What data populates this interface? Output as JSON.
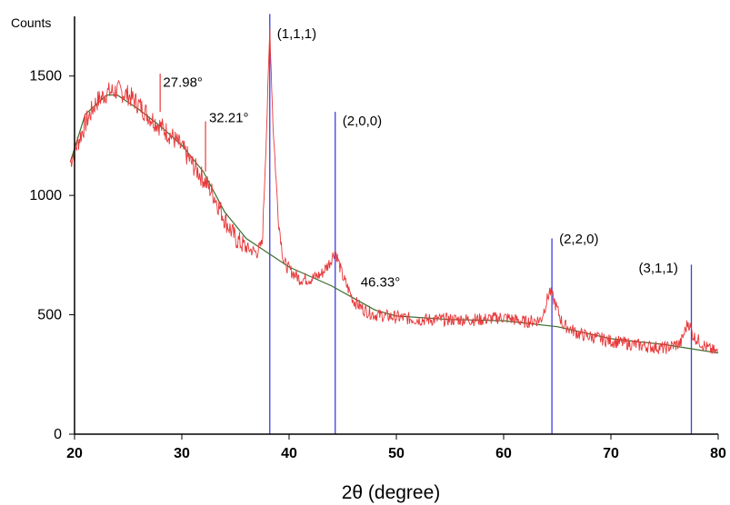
{
  "chart_data": {
    "type": "line",
    "title": "",
    "xlabel": "2θ (degree)",
    "ylabel": "Counts",
    "xlim": [
      20,
      80
    ],
    "ylim": [
      0,
      1750
    ],
    "xticks": [
      20,
      30,
      40,
      50,
      60,
      70,
      80
    ],
    "yticks": [
      0,
      500,
      1000,
      1500
    ],
    "grid": false,
    "legend": "none",
    "colors": {
      "pattern": "#e8383a",
      "background": "#3b6e2e",
      "reference": "#3f3fe0",
      "axis": "#000000"
    },
    "series": [
      {
        "kind": "measured-pattern",
        "x": [
          19.6,
          21,
          22,
          23,
          24,
          25,
          26,
          27,
          28,
          29,
          30,
          31,
          32,
          33,
          34,
          35,
          36,
          37,
          37.5,
          38,
          38.2,
          38.5,
          39,
          39.5,
          40,
          41,
          42,
          43,
          43.8,
          44.3,
          45,
          46,
          47,
          48,
          50,
          52,
          55,
          58,
          60,
          62,
          63.5,
          64.3,
          64.7,
          65.5,
          67,
          70,
          73,
          75,
          76.5,
          77.2,
          77.7,
          79,
          80
        ],
        "y": [
          1140,
          1300,
          1390,
          1430,
          1440,
          1420,
          1380,
          1330,
          1290,
          1250,
          1200,
          1130,
          1070,
          1000,
          900,
          820,
          780,
          760,
          800,
          1400,
          1700,
          1300,
          900,
          720,
          690,
          650,
          650,
          670,
          720,
          770,
          660,
          560,
          520,
          500,
          490,
          480,
          480,
          480,
          490,
          470,
          480,
          600,
          560,
          460,
          420,
          390,
          370,
          360,
          380,
          470,
          410,
          360,
          340
        ]
      },
      {
        "kind": "background-fit",
        "x": [
          19.6,
          21,
          23,
          24,
          26,
          28,
          30,
          32,
          34,
          36,
          38,
          40,
          42,
          44,
          46,
          48,
          50,
          55,
          60,
          65,
          70,
          75,
          80
        ],
        "y": [
          1140,
          1340,
          1420,
          1420,
          1360,
          1290,
          1210,
          1100,
          930,
          820,
          760,
          700,
          660,
          620,
          570,
          520,
          495,
          480,
          475,
          450,
          400,
          375,
          340
        ]
      }
    ],
    "reference_lines": [
      {
        "label": "(1,1,1)",
        "x": 38.2,
        "height": 1760
      },
      {
        "label": "(2,0,0)",
        "x": 44.3,
        "height": 1350
      },
      {
        "label": "(2,2,0)",
        "x": 64.5,
        "height": 820
      },
      {
        "label": "(3,1,1)",
        "x": 77.5,
        "height": 710
      }
    ],
    "annotations": [
      {
        "text": "27.98°",
        "x": 28.0,
        "y": 1440
      },
      {
        "text": "32.21°",
        "x": 32.2,
        "y": 1300
      },
      {
        "text": "46.33°",
        "x": 46.33,
        "y": 615
      }
    ]
  }
}
